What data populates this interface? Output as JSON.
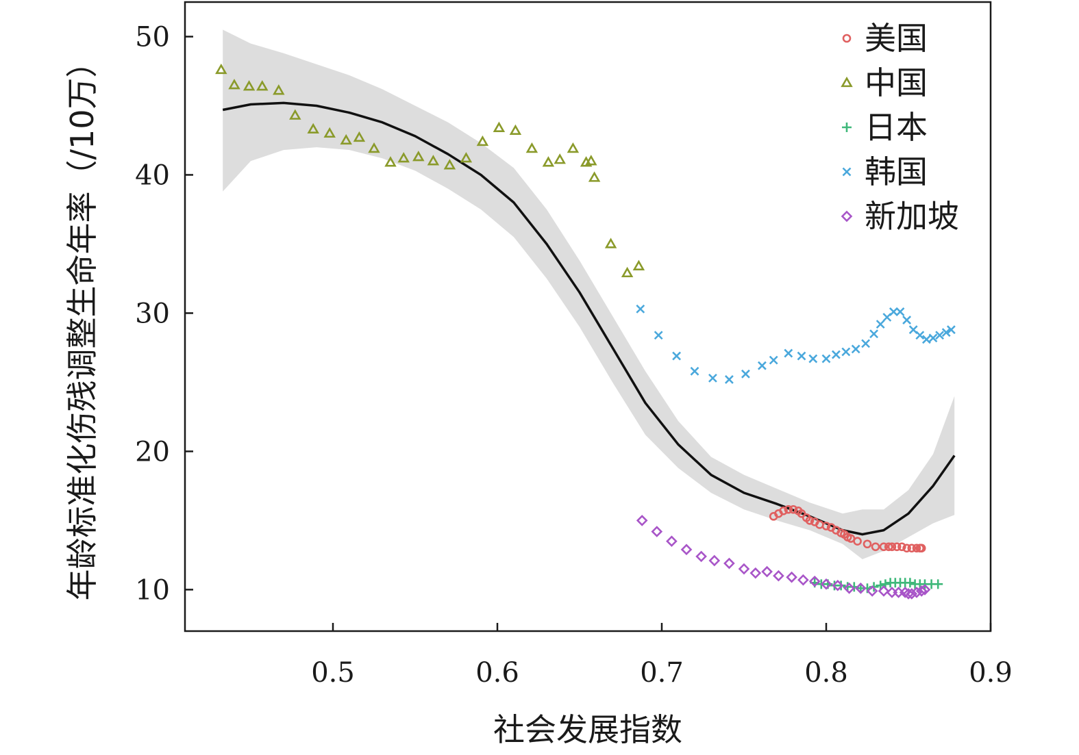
{
  "chart_data": {
    "type": "scatter",
    "xlabel": "社会发展指数",
    "ylabel": "年龄标准化伤残调整生命年率（/10万）",
    "xlim": [
      0.41,
      0.9
    ],
    "ylim": [
      7,
      52.5
    ],
    "x_ticks": [
      "0.5",
      "0.6",
      "0.7",
      "0.8",
      "0.9"
    ],
    "y_ticks": [
      "10",
      "20",
      "30",
      "40",
      "50"
    ],
    "x_tick_values": [
      0.5,
      0.6,
      0.7,
      0.8,
      0.9
    ],
    "y_tick_values": [
      10,
      20,
      30,
      40,
      50
    ],
    "grid": false,
    "legend_position": "top-right",
    "smooth_fit": {
      "line_color": "#111111",
      "band_color": "#dddddd",
      "x": [
        0.433,
        0.45,
        0.47,
        0.49,
        0.51,
        0.53,
        0.55,
        0.57,
        0.59,
        0.61,
        0.63,
        0.65,
        0.67,
        0.69,
        0.71,
        0.73,
        0.75,
        0.77,
        0.79,
        0.81,
        0.822,
        0.835,
        0.85,
        0.865,
        0.878
      ],
      "y": [
        44.7,
        45.1,
        45.2,
        45.0,
        44.5,
        43.8,
        42.8,
        41.5,
        40.0,
        38.0,
        35.0,
        31.5,
        27.5,
        23.5,
        20.5,
        18.3,
        17.0,
        16.2,
        15.3,
        14.3,
        14.0,
        14.3,
        15.5,
        17.5,
        19.7
      ],
      "upper": [
        50.5,
        49.5,
        48.8,
        48.0,
        47.2,
        46.2,
        45.0,
        43.8,
        42.3,
        40.5,
        37.5,
        33.8,
        29.8,
        25.8,
        22.2,
        19.6,
        18.3,
        17.3,
        16.3,
        15.5,
        15.8,
        15.8,
        17.2,
        19.8,
        24.0
      ],
      "lower": [
        38.8,
        41.0,
        41.8,
        42.0,
        41.8,
        41.2,
        40.3,
        39.0,
        37.5,
        35.5,
        32.5,
        29.0,
        25.0,
        21.2,
        18.8,
        17.0,
        15.8,
        15.0,
        14.3,
        13.3,
        12.2,
        12.8,
        13.8,
        14.8,
        15.4
      ]
    },
    "series": [
      {
        "name": "美国",
        "marker": "circle",
        "color": "#e06060",
        "x": [
          0.768,
          0.771,
          0.774,
          0.777,
          0.78,
          0.783,
          0.785,
          0.788,
          0.79,
          0.793,
          0.796,
          0.8,
          0.803,
          0.806,
          0.809,
          0.811,
          0.813,
          0.815,
          0.819,
          0.825,
          0.83,
          0.835,
          0.838,
          0.84,
          0.843,
          0.846,
          0.849,
          0.852,
          0.855,
          0.857,
          0.858
        ],
        "y": [
          15.3,
          15.5,
          15.7,
          15.8,
          15.8,
          15.7,
          15.5,
          15.2,
          15.0,
          14.9,
          14.7,
          14.6,
          14.5,
          14.3,
          14.1,
          14.0,
          13.8,
          13.7,
          13.5,
          13.3,
          13.1,
          13.1,
          13.1,
          13.1,
          13.1,
          13.1,
          13.0,
          13.0,
          13.0,
          13.0,
          13.0
        ]
      },
      {
        "name": "中国",
        "marker": "triangle",
        "color": "#8a9a2a",
        "x": [
          0.432,
          0.44,
          0.449,
          0.457,
          0.467,
          0.477,
          0.488,
          0.498,
          0.508,
          0.516,
          0.525,
          0.535,
          0.543,
          0.552,
          0.561,
          0.571,
          0.581,
          0.591,
          0.601,
          0.611,
          0.621,
          0.631,
          0.638,
          0.646,
          0.654,
          0.657,
          0.659,
          0.669,
          0.679,
          0.686
        ],
        "y": [
          47.6,
          46.5,
          46.4,
          46.4,
          46.1,
          44.3,
          43.3,
          43.0,
          42.5,
          42.7,
          41.9,
          40.9,
          41.2,
          41.3,
          41.0,
          40.7,
          41.2,
          42.4,
          43.4,
          43.2,
          41.9,
          40.9,
          41.1,
          41.9,
          40.9,
          41.0,
          39.8,
          35.0,
          32.9,
          33.4
        ]
      },
      {
        "name": "日本",
        "marker": "plus",
        "color": "#3fb87a",
        "x": [
          0.793,
          0.797,
          0.801,
          0.805,
          0.809,
          0.813,
          0.817,
          0.821,
          0.825,
          0.829,
          0.833,
          0.836,
          0.839,
          0.842,
          0.845,
          0.848,
          0.851,
          0.854,
          0.857,
          0.86,
          0.864,
          0.868
        ],
        "y": [
          10.5,
          10.4,
          10.4,
          10.3,
          10.3,
          10.2,
          10.2,
          10.1,
          10.1,
          10.2,
          10.3,
          10.4,
          10.5,
          10.5,
          10.5,
          10.5,
          10.5,
          10.4,
          10.4,
          10.4,
          10.4,
          10.4
        ]
      },
      {
        "name": "韩国",
        "marker": "x",
        "color": "#4aa8dc",
        "x": [
          0.687,
          0.698,
          0.709,
          0.72,
          0.731,
          0.741,
          0.751,
          0.761,
          0.768,
          0.777,
          0.785,
          0.792,
          0.8,
          0.806,
          0.812,
          0.818,
          0.824,
          0.829,
          0.833,
          0.837,
          0.841,
          0.845,
          0.849,
          0.853,
          0.857,
          0.861,
          0.865,
          0.869,
          0.873,
          0.876
        ],
        "y": [
          30.3,
          28.4,
          26.9,
          25.8,
          25.3,
          25.2,
          25.6,
          26.2,
          26.6,
          27.1,
          26.9,
          26.7,
          26.7,
          27.0,
          27.2,
          27.4,
          27.8,
          28.5,
          29.2,
          29.7,
          30.1,
          30.1,
          29.5,
          28.8,
          28.4,
          28.1,
          28.2,
          28.4,
          28.6,
          28.8
        ]
      },
      {
        "name": "新加坡",
        "marker": "diamond",
        "color": "#a855c8",
        "x": [
          0.688,
          0.697,
          0.706,
          0.715,
          0.724,
          0.732,
          0.741,
          0.75,
          0.757,
          0.764,
          0.771,
          0.779,
          0.786,
          0.793,
          0.8,
          0.807,
          0.814,
          0.821,
          0.828,
          0.835,
          0.84,
          0.844,
          0.848,
          0.85,
          0.852,
          0.855,
          0.858,
          0.86
        ],
        "y": [
          15.0,
          14.2,
          13.5,
          12.9,
          12.4,
          12.1,
          11.9,
          11.5,
          11.2,
          11.3,
          11.0,
          10.9,
          10.7,
          10.6,
          10.4,
          10.3,
          10.1,
          10.1,
          9.9,
          9.9,
          9.8,
          9.8,
          9.8,
          9.7,
          9.7,
          9.8,
          9.9,
          10.0
        ]
      }
    ]
  }
}
